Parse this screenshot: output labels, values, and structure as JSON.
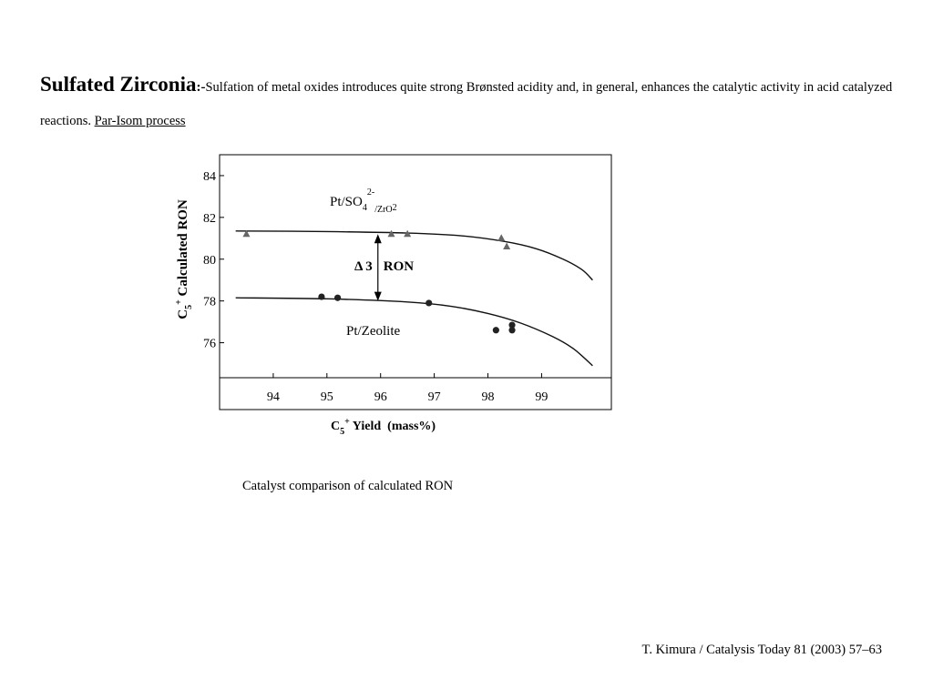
{
  "slide": {
    "title": "Sulfated Zirconia",
    "title_separator": ":-",
    "body": "Sulfation of metal oxides introduces quite strong  Brønsted acidity  and, in general, enhances the catalytic activity in acid catalyzed reactions. ",
    "link_text": "Par-Isom process",
    "caption": "Catalyst comparison of calculated RON",
    "citation": "T. Kimura / Catalysis Today 81 (2003) 57–63"
  },
  "chart_data": {
    "type": "scatter",
    "xlabel": "C5+ Yield  (mass%)",
    "ylabel": "C5+ Calculated RON",
    "xlim": [
      93.0,
      100.3
    ],
    "ylim": [
      72.8,
      85.0
    ],
    "x_ticks": [
      94,
      95,
      96,
      97,
      98,
      99
    ],
    "y_ticks": [
      76,
      78,
      80,
      82,
      84
    ],
    "grid": false,
    "series": [
      {
        "name": "Pt/SO42-/ZrO2",
        "marker": "triangle",
        "points": [
          [
            93.5,
            81.2
          ],
          [
            96.2,
            81.2
          ],
          [
            96.5,
            81.2
          ],
          [
            98.25,
            81.0
          ],
          [
            98.35,
            80.6
          ]
        ],
        "curve": [
          [
            93.3,
            81.35
          ],
          [
            95.0,
            81.32
          ],
          [
            96.5,
            81.25
          ],
          [
            97.5,
            81.12
          ],
          [
            98.3,
            80.85
          ],
          [
            98.9,
            80.5
          ],
          [
            99.4,
            80.0
          ],
          [
            99.75,
            79.5
          ],
          [
            99.95,
            79.0
          ]
        ]
      },
      {
        "name": "Pt/Zeolite",
        "marker": "circle",
        "points": [
          [
            94.9,
            78.2
          ],
          [
            95.2,
            78.15
          ],
          [
            96.9,
            77.9
          ],
          [
            98.15,
            76.6
          ],
          [
            98.45,
            76.85
          ],
          [
            98.45,
            76.6
          ]
        ],
        "curve": [
          [
            93.3,
            78.15
          ],
          [
            95.0,
            78.1
          ],
          [
            96.5,
            77.95
          ],
          [
            97.3,
            77.75
          ],
          [
            98.0,
            77.4
          ],
          [
            98.6,
            76.95
          ],
          [
            99.2,
            76.3
          ],
          [
            99.6,
            75.7
          ],
          [
            99.95,
            74.9
          ]
        ]
      }
    ],
    "annotations": [
      {
        "text": "Δ 3  RON",
        "arrow_x": 95.95,
        "from_y": 81.2,
        "to_y": 78.0
      }
    ]
  }
}
